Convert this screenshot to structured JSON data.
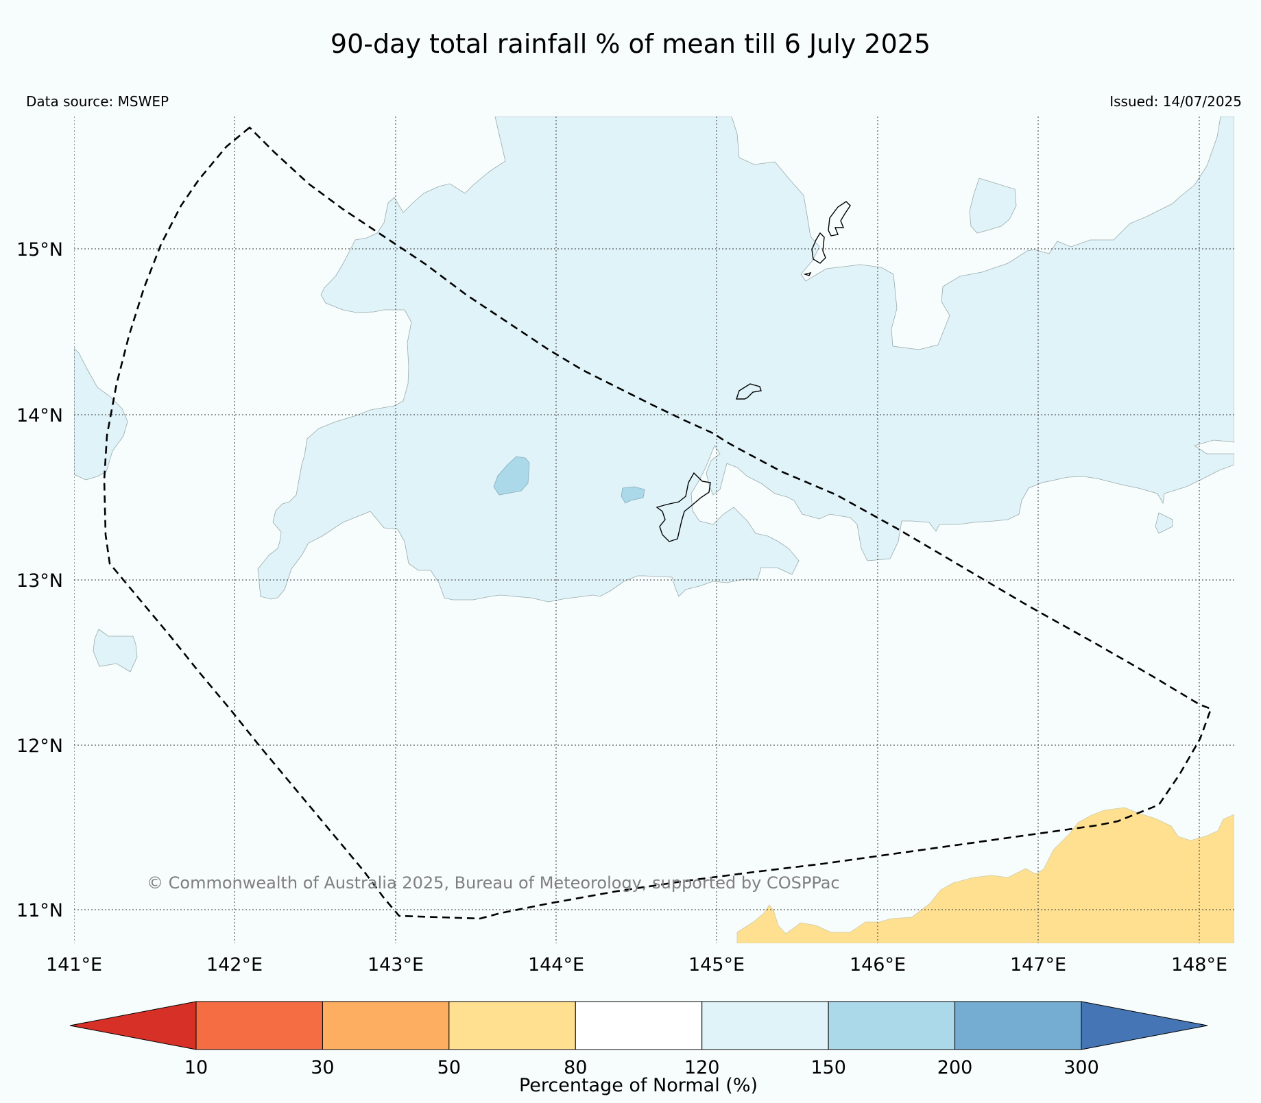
{
  "title": "90-day total rainfall % of mean till 6 July 2025",
  "data_source": "Data source: MSWEP",
  "issued": "Issued: 14/07/2025",
  "copyright": "© Commonwealth of Australia 2025, Bureau of Meteorology, supported by COSPPac",
  "lon_ticks": [
    "141°E",
    "142°E",
    "143°E",
    "144°E",
    "145°E",
    "146°E",
    "147°E",
    "148°E"
  ],
  "lat_ticks": [
    "15°N",
    "14°N",
    "13°N",
    "12°N",
    "11°N"
  ],
  "colorbar": {
    "label": "Percentage of Normal (%)",
    "ticks": [
      "10",
      "30",
      "50",
      "80",
      "120",
      "150",
      "200",
      "300"
    ],
    "under_color": "#d73027",
    "over_color": "#4575b4",
    "bins": [
      {
        "range": "10-30",
        "color": "#f46d43"
      },
      {
        "range": "30-50",
        "color": "#fdae61"
      },
      {
        "range": "50-80",
        "color": "#fee090"
      },
      {
        "range": "80-120",
        "color": "#ffffff"
      },
      {
        "range": "120-150",
        "color": "#e0f3f8"
      },
      {
        "range": "150-200",
        "color": "#abd9e9"
      },
      {
        "range": "200-300",
        "color": "#74add1"
      }
    ]
  },
  "colors": {
    "background": "#f7fcfd",
    "wet_light": "#e0f3f8",
    "wet_medium": "#abd9e9",
    "dry": "#fee090"
  }
}
